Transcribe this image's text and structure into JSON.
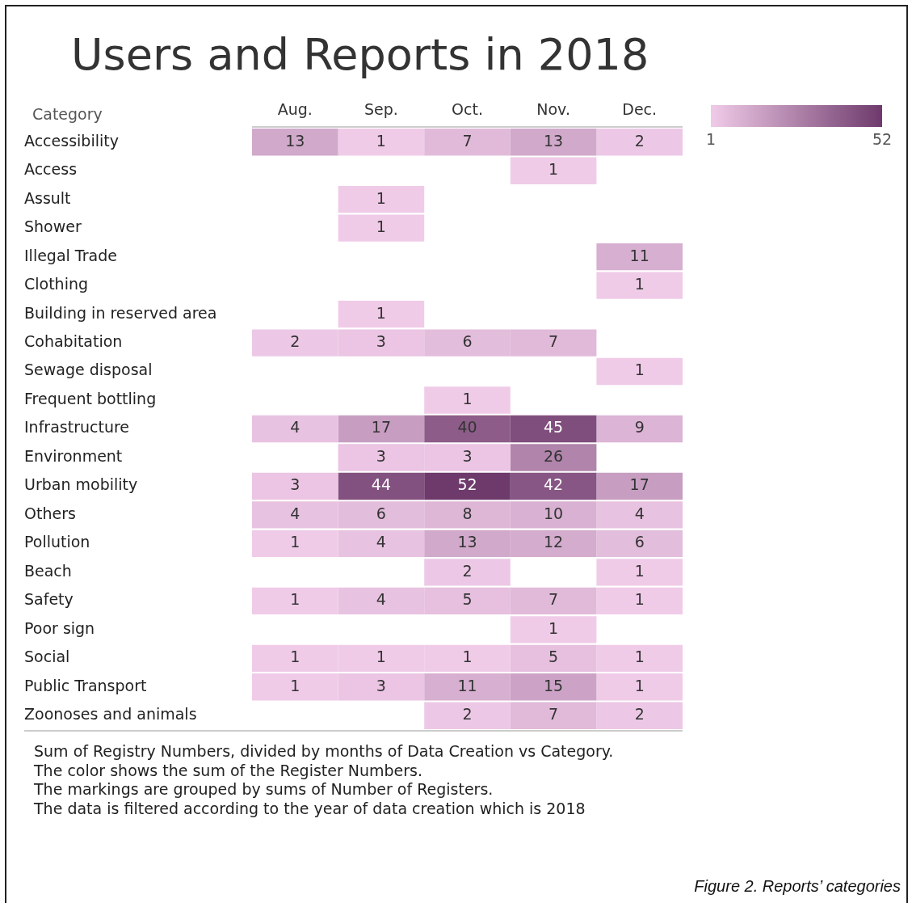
{
  "chart_data": {
    "type": "heatmap",
    "title": "Users and Reports in 2018",
    "ylabel": "Category",
    "categories": [
      "Aug.",
      "Sep.",
      "Oct.",
      "Nov.",
      "Dec."
    ],
    "y_categories": [
      "Accessibility",
      "Access",
      "Assult",
      "Shower",
      "Illegal Trade",
      "Clothing",
      "Building in reserved area",
      "Cohabitation",
      "Sewage disposal",
      "Frequent bottling",
      "Infrastructure",
      "Environment",
      "Urban mobility",
      "Others",
      "Pollution",
      "Beach",
      "Safety",
      "Poor sign",
      "Social",
      "Public Transport",
      "Zoonoses and animals"
    ],
    "cells": [
      [
        13,
        1,
        7,
        13,
        2
      ],
      [
        null,
        null,
        null,
        1,
        null
      ],
      [
        null,
        1,
        null,
        null,
        null
      ],
      [
        null,
        1,
        null,
        null,
        null
      ],
      [
        null,
        null,
        null,
        null,
        11
      ],
      [
        null,
        null,
        null,
        null,
        1
      ],
      [
        null,
        1,
        null,
        null,
        null
      ],
      [
        2,
        3,
        6,
        7,
        null
      ],
      [
        null,
        null,
        null,
        null,
        1
      ],
      [
        null,
        null,
        1,
        null,
        null
      ],
      [
        4,
        17,
        40,
        45,
        9
      ],
      [
        null,
        3,
        3,
        26,
        null
      ],
      [
        3,
        44,
        52,
        42,
        17
      ],
      [
        4,
        6,
        8,
        10,
        4
      ],
      [
        1,
        4,
        13,
        12,
        6
      ],
      [
        null,
        null,
        2,
        null,
        1
      ],
      [
        1,
        4,
        5,
        7,
        1
      ],
      [
        null,
        null,
        null,
        1,
        null
      ],
      [
        1,
        1,
        1,
        5,
        1
      ],
      [
        1,
        3,
        11,
        15,
        1
      ],
      [
        null,
        null,
        2,
        7,
        2
      ]
    ],
    "clim": [
      1,
      52
    ],
    "cticks": [
      1,
      52
    ],
    "colors": [
      "#f0cbe8",
      "#6e3a6c"
    ],
    "data_labels": true,
    "annotations": [
      "Sum of Registry Numbers, divided by months of Data Creation vs Category.",
      "The color shows the sum of the Register Numbers.",
      "The markings are grouped by sums of Number of Registers.",
      "The data is filtered according to the year of data creation which is 2018",
      "Figure 2. Reports’ categories"
    ]
  }
}
